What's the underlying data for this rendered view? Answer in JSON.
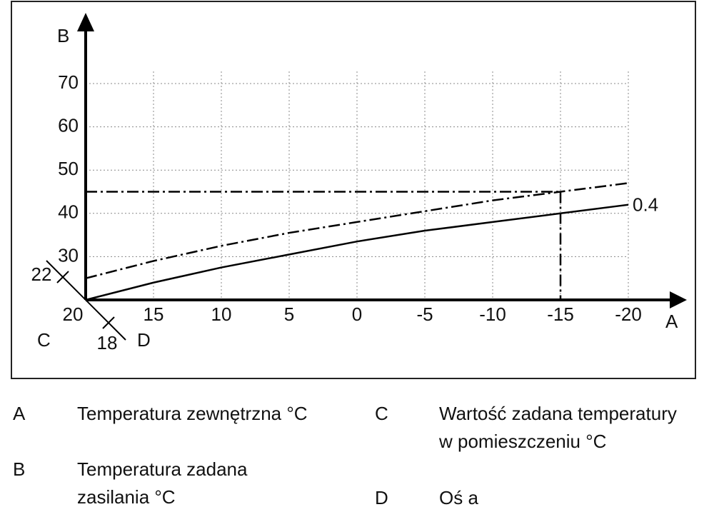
{
  "chart_data": {
    "type": "line",
    "x_label": "A",
    "y_label": "B",
    "room_axis_label": "C",
    "shift_axis_label": "D",
    "x": [
      20,
      15,
      10,
      5,
      0,
      -5,
      -10,
      -15,
      -20
    ],
    "series": [
      {
        "name": "0.4",
        "color": "#000000",
        "style": "solid",
        "values": [
          20,
          24,
          27.5,
          30.5,
          33.5,
          36,
          38,
          40,
          42
        ]
      },
      {
        "color": "#000000",
        "style": "dashdot",
        "values": [
          25,
          29,
          32.5,
          35.5,
          38,
          40.5,
          43,
          45,
          47
        ]
      }
    ],
    "xlim": [
      20,
      -20
    ],
    "xticks": [
      20,
      15,
      10,
      5,
      0,
      -5,
      -10,
      -15,
      -20
    ],
    "ylim": [
      20,
      70
    ],
    "yticks": [
      30,
      40,
      50,
      60,
      70
    ],
    "grid": true,
    "reference": {
      "x": -15,
      "y": 45
    },
    "room_ticks": [
      22,
      18
    ]
  },
  "legend": [
    {
      "key": "A",
      "text": "Temperatura zewnętrzna °C"
    },
    {
      "key": "B",
      "text": "Temperatura zadana zasilania °C"
    },
    {
      "key": "C",
      "text": "Wartość zadana tempe­ratury w pomieszczeniu °C"
    },
    {
      "key": "D",
      "text": "Oś a"
    }
  ]
}
